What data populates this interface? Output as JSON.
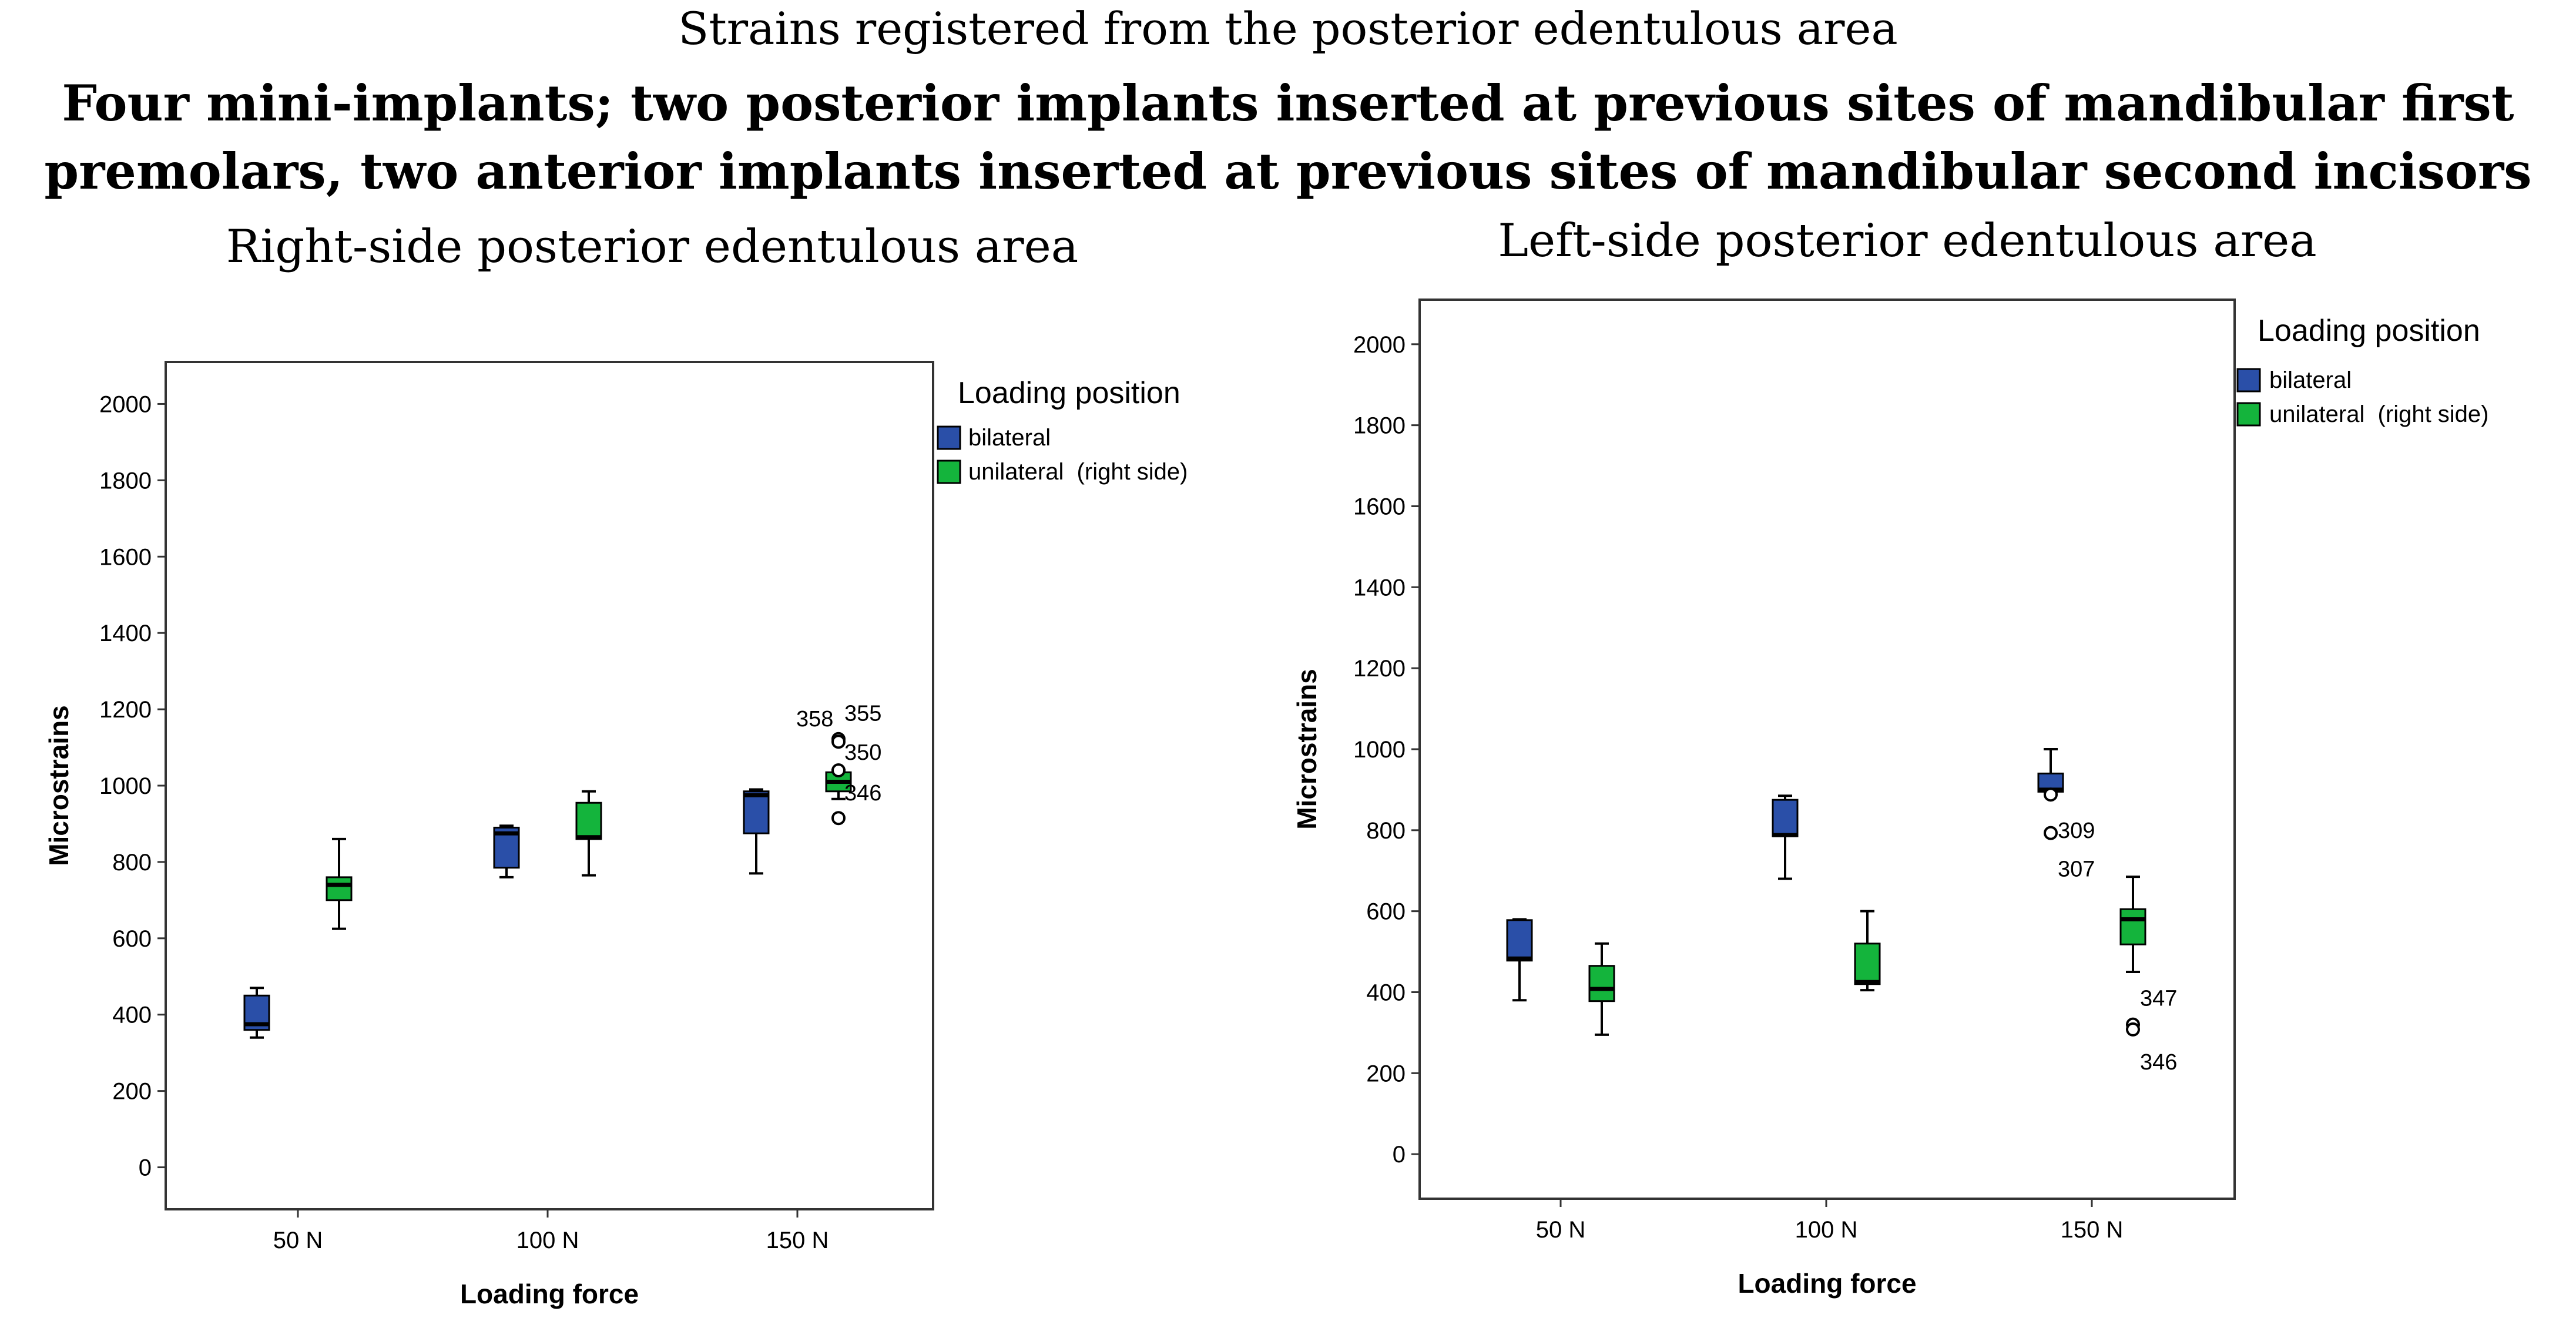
{
  "title": "Strains registered from the posterior edentulous area",
  "subtitle": "Four mini-implants; two posterior implants inserted at previous sites of mandibular first premolars, two anterior implants inserted at previous sites of mandibular second incisors",
  "colors": {
    "bilateral": "#2a4fa8",
    "unilateral": "#14b43c",
    "frame": "#333333"
  },
  "chart_data": [
    {
      "type": "boxplot",
      "panel_title": "Right-side posterior edentulous area",
      "xlabel": "Loading force",
      "ylabel": "Microstrains",
      "categories": [
        "50 N",
        "100 N",
        "150 N"
      ],
      "ylim": [
        -110,
        2110
      ],
      "yticks": [
        0,
        200,
        400,
        600,
        800,
        1000,
        1200,
        1400,
        1600,
        1800,
        2000
      ],
      "legend_title": "Loading position",
      "series": [
        {
          "name": "bilateral",
          "color": "#2a4fa8",
          "boxes": [
            {
              "category": "50 N",
              "whisker_low": 340,
              "q1": 360,
              "median": 375,
              "q3": 450,
              "whisker_high": 470,
              "outliers": []
            },
            {
              "category": "100 N",
              "whisker_low": 760,
              "q1": 785,
              "median": 875,
              "q3": 890,
              "whisker_high": 895,
              "outliers": []
            },
            {
              "category": "150 N",
              "whisker_low": 770,
              "q1": 875,
              "median": 975,
              "q3": 985,
              "whisker_high": 990,
              "outliers": []
            }
          ]
        },
        {
          "name": "unilateral  (right side)",
          "color": "#14b43c",
          "boxes": [
            {
              "category": "50 N",
              "whisker_low": 625,
              "q1": 700,
              "median": 740,
              "q3": 760,
              "whisker_high": 860,
              "outliers": []
            },
            {
              "category": "100 N",
              "whisker_low": 765,
              "q1": 860,
              "median": 865,
              "q3": 955,
              "whisker_high": 985,
              "outliers": []
            },
            {
              "category": "150 N",
              "whisker_low": 965,
              "q1": 985,
              "median": 1010,
              "q3": 1035,
              "whisker_high": 1040,
              "outliers": [
                {
                  "value": 1122,
                  "label": "358",
                  "dx": -72,
                  "dy": -22
                },
                {
                  "value": 1115,
                  "label": "355",
                  "dx": 10,
                  "dy": -36
                },
                {
                  "value": 1040,
                  "label": "350",
                  "dx": 10,
                  "dy": -18
                },
                {
                  "value": 915,
                  "label": "346",
                  "dx": 10,
                  "dy": -30
                }
              ]
            }
          ]
        }
      ]
    },
    {
      "type": "boxplot",
      "panel_title": "Left-side posterior edentulous area",
      "xlabel": "Loading force",
      "ylabel": "Microstrains",
      "categories": [
        "50 N",
        "100 N",
        "150 N"
      ],
      "ylim": [
        -110,
        2110
      ],
      "yticks": [
        0,
        200,
        400,
        600,
        800,
        1000,
        1200,
        1400,
        1600,
        1800,
        2000
      ],
      "legend_title": "Loading position",
      "series": [
        {
          "name": "bilateral",
          "color": "#2a4fa8",
          "boxes": [
            {
              "category": "50 N",
              "whisker_low": 380,
              "q1": 478,
              "median": 483,
              "q3": 578,
              "whisker_high": 580,
              "outliers": []
            },
            {
              "category": "100 N",
              "whisker_low": 680,
              "q1": 785,
              "median": 788,
              "q3": 875,
              "whisker_high": 885,
              "outliers": []
            },
            {
              "category": "150 N",
              "whisker_low": 895,
              "q1": 895,
              "median": 900,
              "q3": 940,
              "whisker_high": 1000,
              "outliers": [
                {
                  "value": 888,
                  "label": "309",
                  "dx": 12,
                  "dy": 74
                },
                {
                  "value": 793,
                  "label": "307",
                  "dx": 12,
                  "dy": 74
                }
              ]
            }
          ]
        },
        {
          "name": "unilateral  (right side)",
          "color": "#14b43c",
          "boxes": [
            {
              "category": "50 N",
              "whisker_low": 295,
              "q1": 378,
              "median": 408,
              "q3": 465,
              "whisker_high": 520,
              "outliers": []
            },
            {
              "category": "100 N",
              "whisker_low": 405,
              "q1": 420,
              "median": 425,
              "q3": 520,
              "whisker_high": 600,
              "outliers": []
            },
            {
              "category": "150 N",
              "whisker_low": 450,
              "q1": 518,
              "median": 580,
              "q3": 605,
              "whisker_high": 685,
              "outliers": [
                {
                  "value": 320,
                  "label": "347",
                  "dx": 12,
                  "dy": -32
                },
                {
                  "value": 308,
                  "label": "346",
                  "dx": 12,
                  "dy": 68
                }
              ]
            }
          ]
        }
      ]
    }
  ]
}
